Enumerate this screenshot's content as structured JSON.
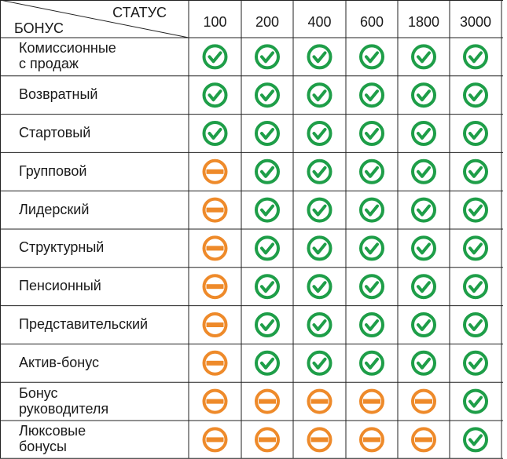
{
  "header": {
    "status": "СТАТУС",
    "bonus": "БОНУС"
  },
  "table": {
    "columns": [
      100,
      200,
      400,
      600,
      1800,
      3000
    ],
    "rows": [
      {
        "label": "Комиссионные\nс продаж",
        "cells": [
          true,
          true,
          true,
          true,
          true,
          true
        ]
      },
      {
        "label": "Возвратный",
        "cells": [
          true,
          true,
          true,
          true,
          true,
          true
        ]
      },
      {
        "label": "Стартовый",
        "cells": [
          true,
          true,
          true,
          true,
          true,
          true
        ]
      },
      {
        "label": "Групповой",
        "cells": [
          false,
          true,
          true,
          true,
          true,
          true
        ]
      },
      {
        "label": "Лидерский",
        "cells": [
          false,
          true,
          true,
          true,
          true,
          true
        ]
      },
      {
        "label": "Структурный",
        "cells": [
          false,
          true,
          true,
          true,
          true,
          true
        ]
      },
      {
        "label": "Пенсионный",
        "cells": [
          false,
          true,
          true,
          true,
          true,
          true
        ]
      },
      {
        "label": "Представительский",
        "cells": [
          false,
          true,
          true,
          true,
          true,
          true
        ]
      },
      {
        "label": "Актив-бонус",
        "cells": [
          false,
          true,
          true,
          true,
          true,
          true
        ]
      },
      {
        "label": "Бонус\nруководителя",
        "cells": [
          false,
          false,
          false,
          false,
          false,
          true
        ]
      },
      {
        "label": "Люксовые\nбонусы",
        "cells": [
          false,
          false,
          false,
          false,
          false,
          true
        ]
      }
    ]
  }
}
